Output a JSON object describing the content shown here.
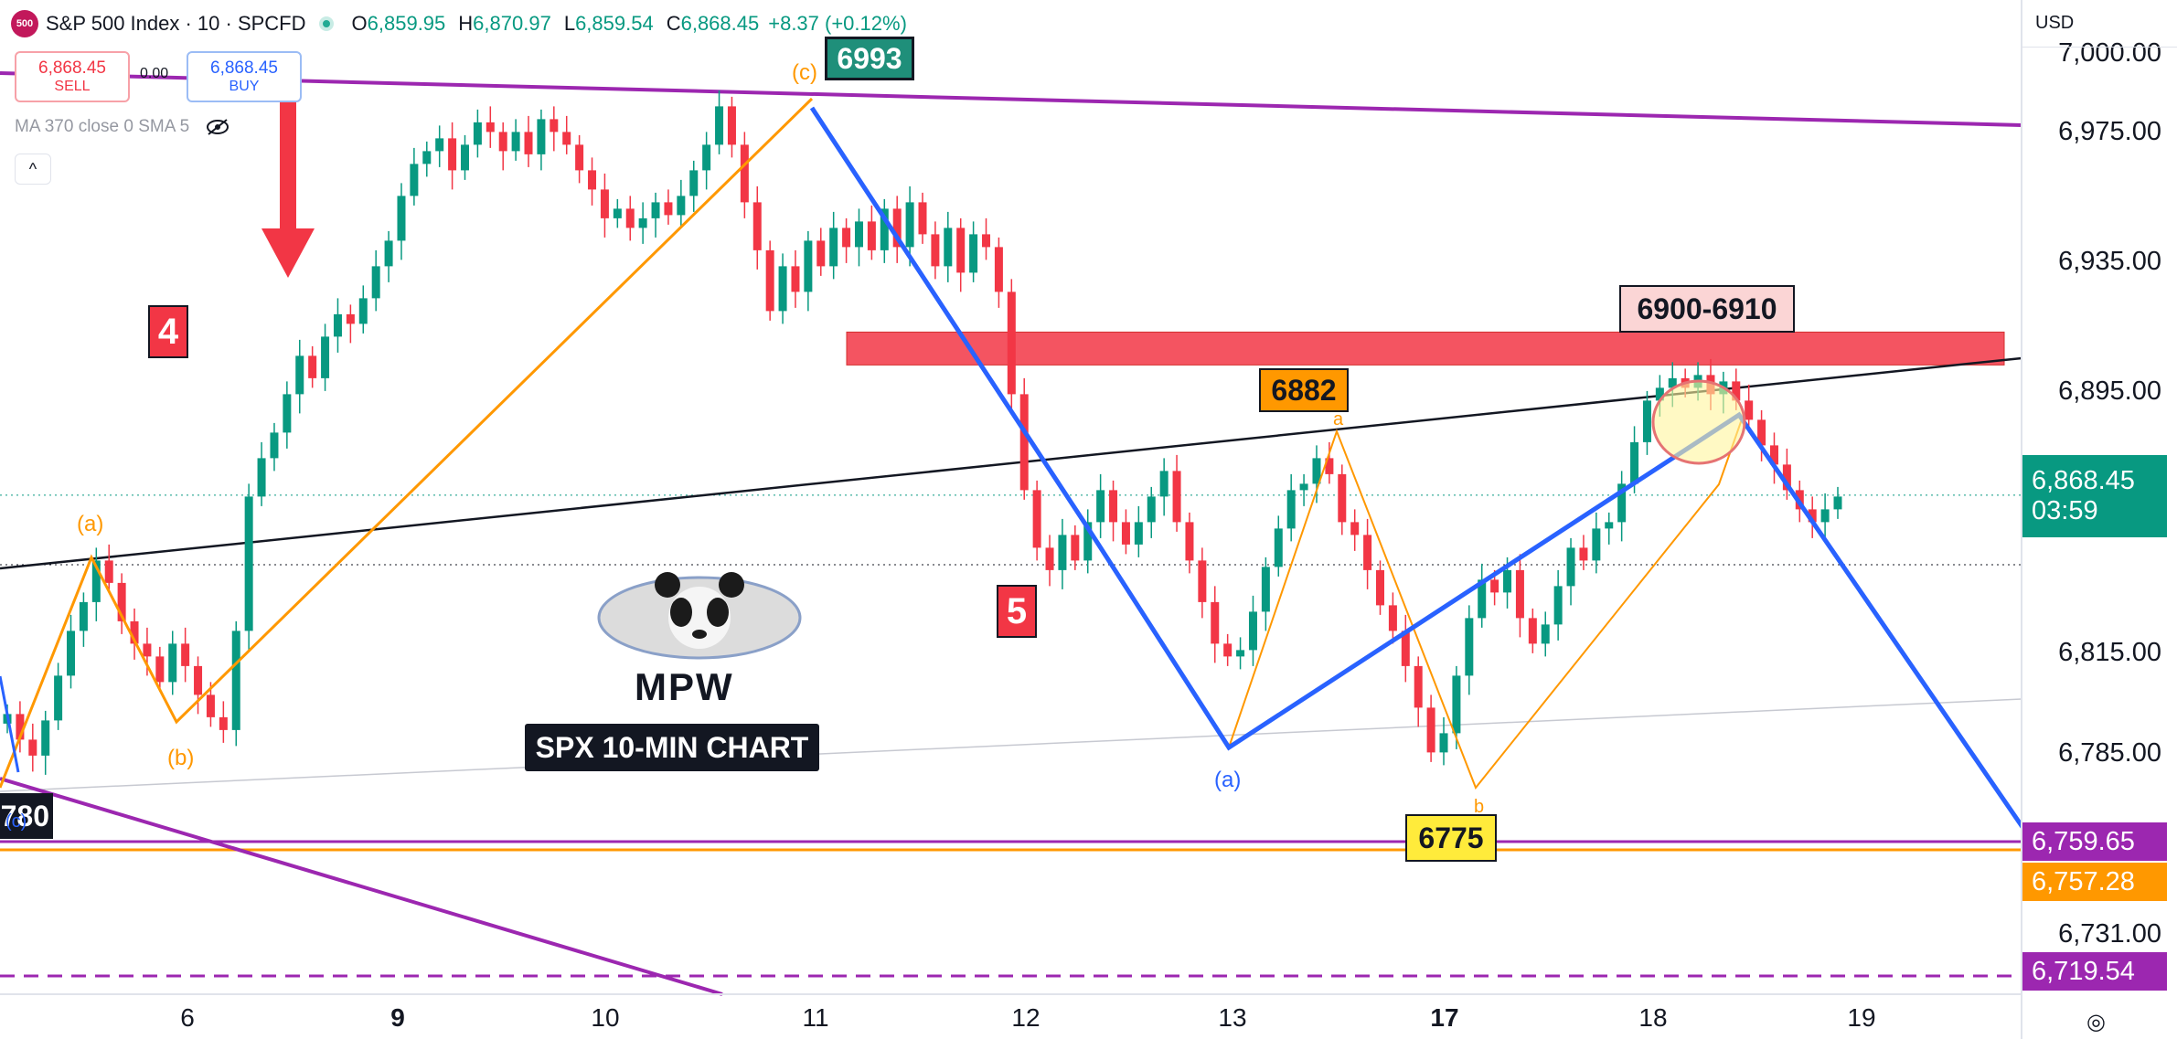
{
  "header": {
    "badge": "500",
    "symbol": "S&P 500 Index · 10 · SPCFD",
    "open_key": "O",
    "open": "6,859.95",
    "high_key": "H",
    "high": "6,870.97",
    "low_key": "L",
    "low": "6,859.54",
    "close_key": "C",
    "close": "6,868.45",
    "change": "+8.37 (+0.12%)"
  },
  "trade": {
    "sell_price": "6,868.45",
    "sell_label": "SELL",
    "spread": "0.00",
    "buy_price": "6,868.45",
    "buy_label": "BUY"
  },
  "indicator": {
    "label": "MA 370 close 0 SMA 5",
    "collapse": "^"
  },
  "currency": "USD",
  "annotations": {
    "wave4": "4",
    "wave5": "5",
    "high_label": "6993",
    "mid_label": "6882",
    "low_label": "6775",
    "range_label": "6900-6910",
    "left_label": "780",
    "title": "SPX 10-MIN CHART",
    "logo_text": "MPW",
    "wave_a": "(a)",
    "wave_b": "(b)",
    "wave_c": "(c)",
    "wave_a2": "(a)",
    "small_a": "a",
    "small_b": "b",
    "wave_e": "(c)"
  },
  "price_tags": {
    "last": "6,868.45",
    "countdown": "03:59",
    "purple": "6,759.65",
    "orange": "6,757.28",
    "dash": "6,719.54"
  },
  "colors": {
    "up": "#089981",
    "down": "#f23645",
    "purple": "#9c27b0",
    "orange": "#ff9800",
    "blue": "#2962ff",
    "resistance": "#f23645",
    "black": "#131722"
  },
  "chart_data": {
    "type": "candlestick",
    "title": "SPX 10-MIN CHART",
    "x_ticks": [
      "6",
      "9",
      "10",
      "11",
      "12",
      "13",
      "17",
      "18",
      "19"
    ],
    "y_ticks": [
      "7,000.00",
      "6,975.00",
      "6,935.00",
      "6,895.00",
      "6,815.00",
      "6,785.00",
      "6,731.00"
    ],
    "ylim": [
      6700,
      7010
    ],
    "key_levels": {
      "resistance_zone": [
        6900,
        6910
      ],
      "purple_support": 6759.65,
      "orange_support": 6757.28,
      "purple_dashed": 6719.54,
      "last": 6868.45
    },
    "path_close": [
      6800,
      6792,
      6787,
      6798,
      6812,
      6826,
      6835,
      6848,
      6841,
      6829,
      6822,
      6818,
      6810,
      6822,
      6815,
      6806,
      6799,
      6795,
      6826,
      6868,
      6880,
      6888,
      6900,
      6912,
      6905,
      6918,
      6925,
      6922,
      6930,
      6940,
      6948,
      6962,
      6972,
      6976,
      6980,
      6970,
      6978,
      6985,
      6982,
      6976,
      6982,
      6975,
      6986,
      6982,
      6978,
      6970,
      6964,
      6955,
      6958,
      6952,
      6955,
      6960,
      6956,
      6962,
      6970,
      6978,
      6990,
      6978,
      6960,
      6945,
      6926,
      6940,
      6932,
      6948,
      6940,
      6952,
      6946,
      6954,
      6945,
      6958,
      6946,
      6960,
      6950,
      6940,
      6952,
      6938,
      6950,
      6946,
      6932,
      6900,
      6870,
      6852,
      6845,
      6856,
      6848,
      6860,
      6870,
      6860,
      6853,
      6860,
      6868,
      6876,
      6860,
      6848,
      6835,
      6822,
      6818,
      6820,
      6832,
      6846,
      6858,
      6870,
      6872,
      6880,
      6875,
      6860,
      6856,
      6845,
      6834,
      6826,
      6815,
      6802,
      6788,
      6794,
      6812,
      6830,
      6842,
      6838,
      6845,
      6830,
      6822,
      6828,
      6840,
      6852,
      6848,
      6858,
      6860,
      6872,
      6885,
      6898,
      6902,
      6905,
      6902,
      6906,
      6900,
      6904,
      6898,
      6892,
      6884,
      6878,
      6870,
      6864,
      6860,
      6864,
      6868
    ]
  }
}
